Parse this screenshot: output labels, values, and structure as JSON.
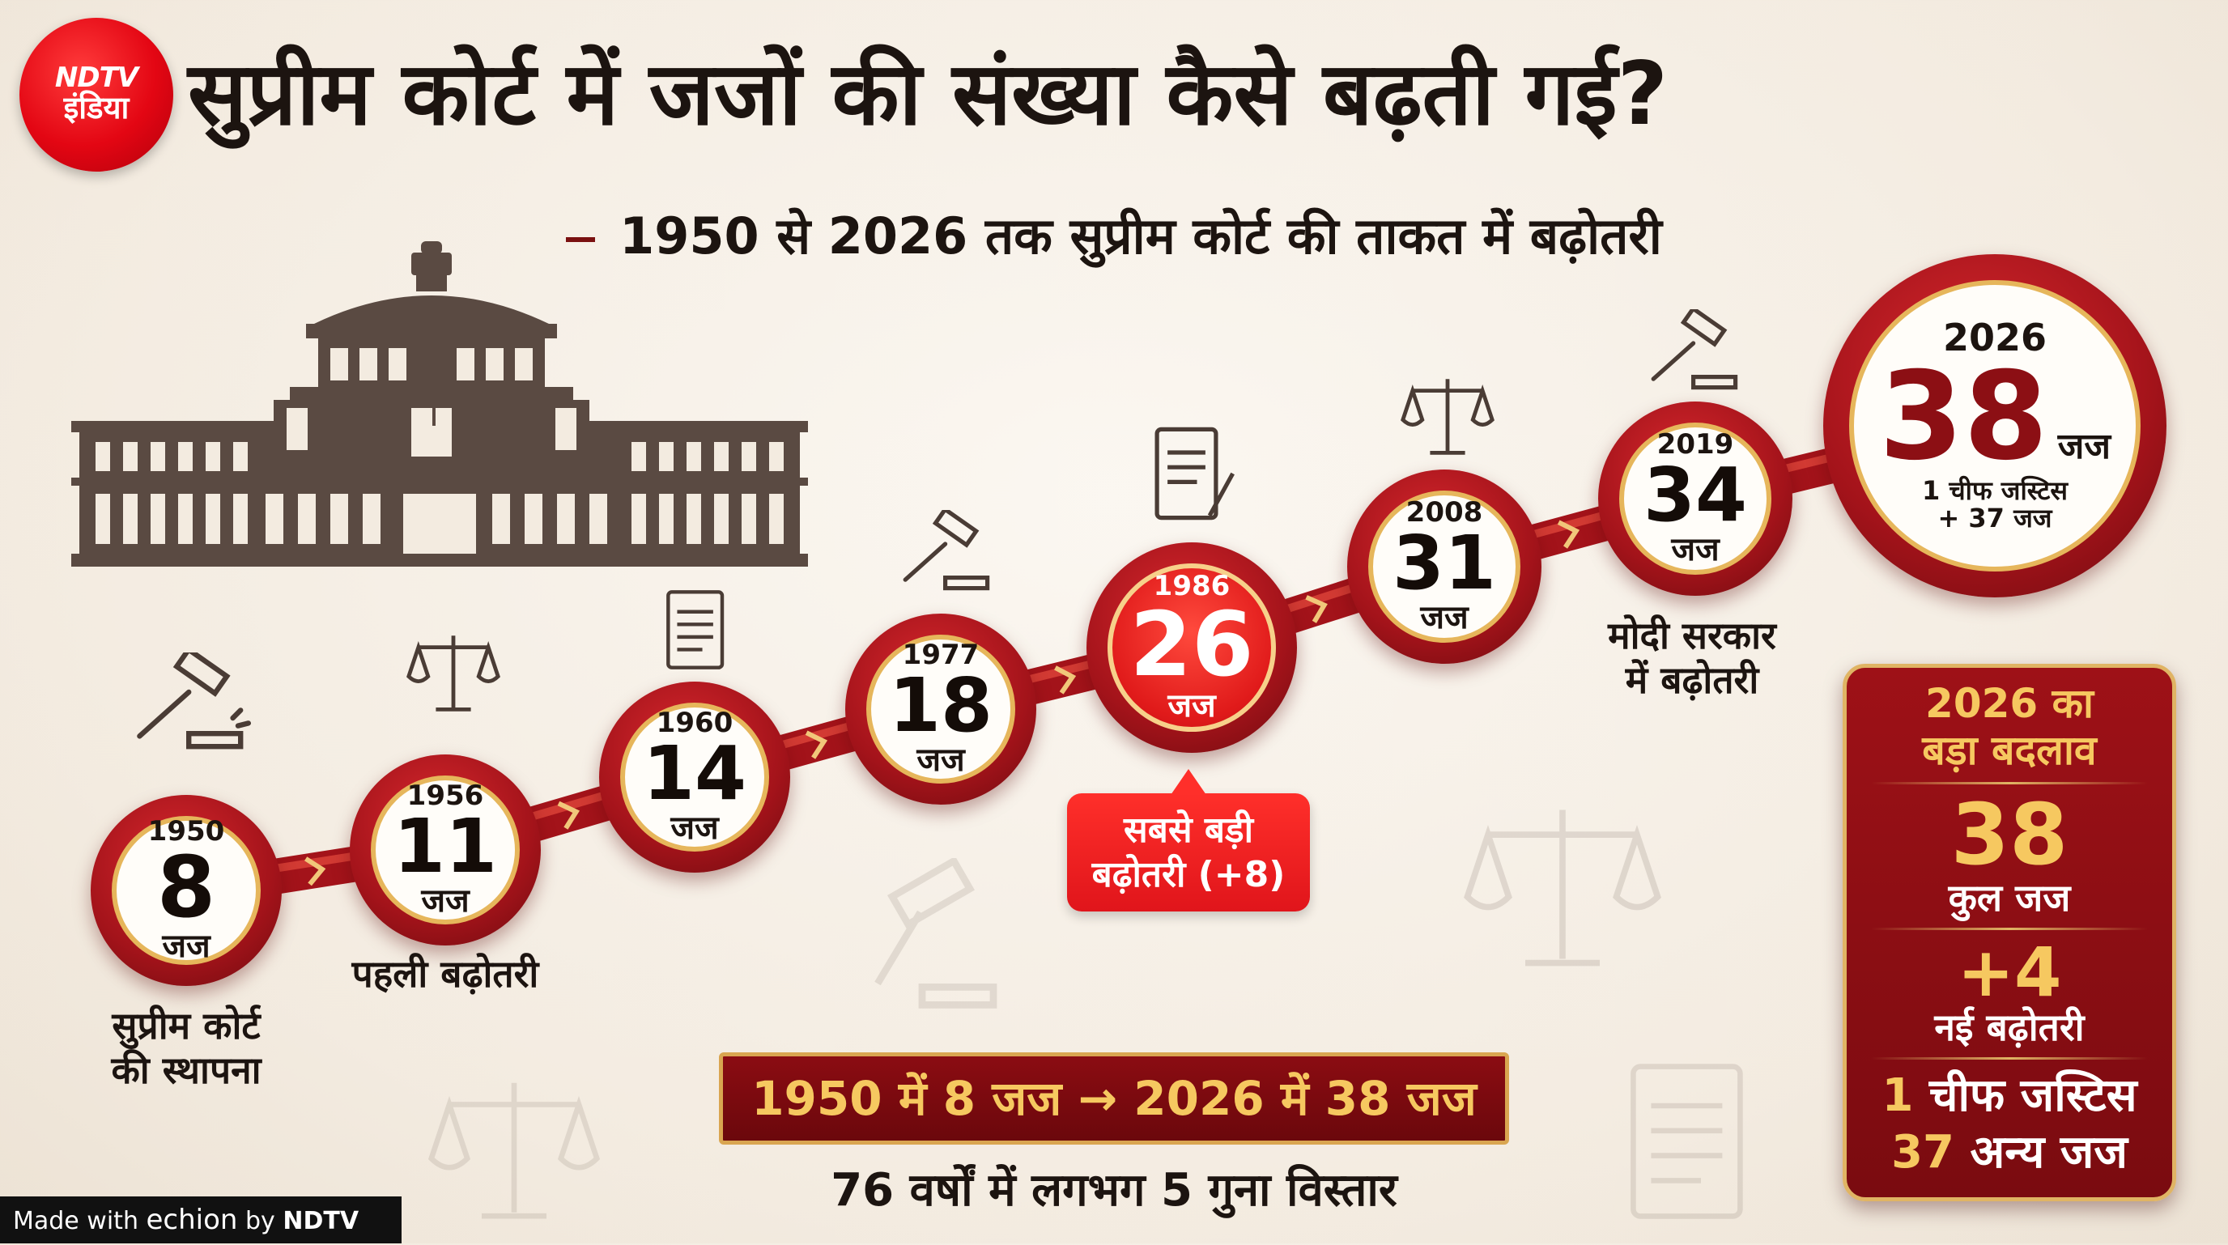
{
  "logo": {
    "line1": "NDTV",
    "line2": "इंडिया"
  },
  "title": "सुप्रीम कोर्ट में जजों की संख्या कैसे बढ़ती गई?",
  "subtitle": "1950 से 2026 तक सुप्रीम कोर्ट की ताकत में बढ़ोतरी",
  "chart_data": {
    "type": "line",
    "title": "सुप्रीम कोर्ट में जजों की संख्या कैसे बढ़ती गई?",
    "subtitle": "1950 से 2026 तक सुप्रीम कोर्ट की ताकत में बढ़ोतरी",
    "unit": "जज",
    "x": [
      "1950",
      "1956",
      "1960",
      "1977",
      "1986",
      "2008",
      "2019",
      "2026"
    ],
    "values": [
      8,
      11,
      14,
      18,
      26,
      31,
      34,
      38
    ],
    "annotations": [
      {
        "x": "1950",
        "text": "सुप्रीम कोर्ट की स्थापना"
      },
      {
        "x": "1956",
        "text": "पहली बढ़ोतरी"
      },
      {
        "x": "1986",
        "text": "सबसे बड़ी बढ़ोतरी (+8)"
      },
      {
        "x": "2019",
        "text": "मोदी सरकार में बढ़ोतरी"
      },
      {
        "x": "2026",
        "text": "1 चीफ जस्टिस + 37 जज"
      }
    ],
    "highlight_color": "#e01a1a",
    "accent_color": "#a3131a"
  },
  "captions": {
    "c1950_a": "सुप्रीम कोर्ट",
    "c1950_b": "की स्थापना",
    "c1956": "पहली बढ़ोतरी",
    "c2019_a": "मोदी सरकार",
    "c2019_b": "में बढ़ोतरी",
    "c2026_a": "1 चीफ जस्टिस",
    "c2026_b": "+ 37 जज"
  },
  "callout": {
    "line1": "सबसे बड़ी",
    "line2": "बढ़ोतरी (+8)"
  },
  "panel": {
    "head1": "2026 का",
    "head2": "बड़ा बदलाव",
    "total": "38",
    "total_label": "कुल जज",
    "added": "+4",
    "added_label": "नई बढ़ोतरी",
    "cj_num": "1",
    "cj_label": "चीफ जस्टिस",
    "other_num": "37",
    "other_label": "अन्य जज"
  },
  "summary": {
    "line1": "1950 में 8 जज → 2026 में 38 जज",
    "line2": "76 वर्षों में लगभग 5 गुना विस्तार"
  },
  "footer": {
    "made_with": "Made with",
    "echion": "echion",
    "by": "by",
    "ndtv": "NDTV"
  },
  "colors": {
    "brand_red": "#e30613",
    "dark_red": "#7a0b10",
    "gold": "#e0b464",
    "background": "#f3ebe0"
  }
}
